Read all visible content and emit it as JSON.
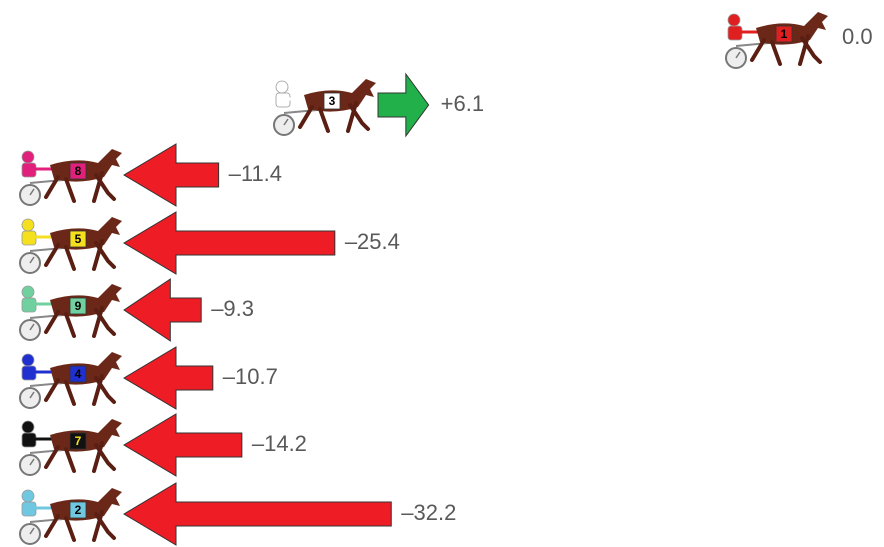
{
  "chart_data": {
    "type": "arrow",
    "categories": [
      "1",
      "3",
      "8",
      "5",
      "9",
      "4",
      "7",
      "2"
    ],
    "values": [
      0.0,
      6.1,
      -11.4,
      -25.4,
      -9.3,
      -10.7,
      -14.2,
      -32.2
    ],
    "value_labels": [
      "0.0",
      "+6.1",
      "–11.4",
      "–25.4",
      "–9.3",
      "–10.7",
      "–14.2",
      "–32.2"
    ],
    "colors": [
      "#e02020",
      "#ffffff",
      "#e0207a",
      "#f5e020",
      "#70d0a0",
      "#2030d0",
      "#111111",
      "#70c8e0"
    ],
    "positive_color": "#22b04a",
    "negative_color": "#ee1c25"
  }
}
